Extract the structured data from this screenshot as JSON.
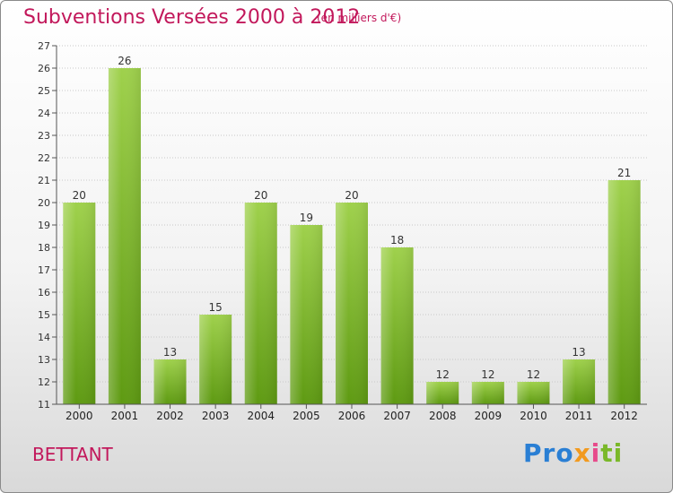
{
  "header": {
    "title": "Subventions Versées 2000 à 2012",
    "subtitle": "(en milliers d'€)"
  },
  "commune": "BETTANT",
  "logo": {
    "text": "Proxiti",
    "parts": [
      "Pro",
      "x",
      "i",
      "ti"
    ]
  },
  "colors": {
    "bar_light": "#9fd14c",
    "bar_dark": "#5e9a12",
    "title": "#c2185b"
  },
  "chart_data": {
    "type": "bar",
    "categories": [
      "2000",
      "2001",
      "2002",
      "2003",
      "2004",
      "2005",
      "2006",
      "2007",
      "2008",
      "2009",
      "2010",
      "2011",
      "2012"
    ],
    "values": [
      20,
      26,
      13,
      15,
      20,
      19,
      20,
      18,
      12,
      12,
      12,
      13,
      21
    ],
    "ylim": [
      11,
      27
    ],
    "yticks": [
      11,
      12,
      13,
      14,
      15,
      16,
      17,
      18,
      19,
      20,
      21,
      22,
      23,
      24,
      25,
      26,
      27
    ],
    "grid": true
  }
}
